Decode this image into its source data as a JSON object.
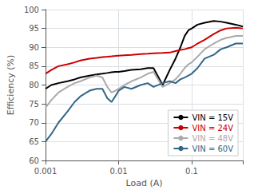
{
  "chart_data": {
    "type": "line",
    "xlabel": "Load (A)",
    "ylabel": "Efficiency (%)",
    "log": "x",
    "xlim": [
      0.001,
      0.5
    ],
    "ylim": [
      60,
      100
    ],
    "xticks": [
      0.001,
      0.01,
      0.1
    ],
    "yticks": [
      60,
      65,
      70,
      75,
      80,
      85,
      90,
      95,
      100
    ],
    "grid": true,
    "legend": "lower right",
    "x": [
      0.001,
      0.0012,
      0.0015,
      0.002,
      0.0025,
      0.003,
      0.004,
      0.005,
      0.006,
      0.007,
      0.008,
      0.009,
      0.01,
      0.012,
      0.015,
      0.02,
      0.025,
      0.03,
      0.04,
      0.05,
      0.06,
      0.07,
      0.08,
      0.09,
      0.1,
      0.12,
      0.15,
      0.2,
      0.25,
      0.3,
      0.4,
      0.5
    ],
    "series": [
      {
        "name": "VIN = 15V",
        "color": "#000000",
        "values": [
          79.0,
          80.0,
          80.5,
          81.0,
          81.5,
          82.0,
          82.5,
          82.8,
          83.0,
          83.2,
          83.4,
          83.5,
          83.5,
          83.7,
          84.0,
          84.2,
          84.5,
          84.5,
          80.0,
          84.0,
          87.0,
          90.0,
          93.0,
          94.5,
          95.0,
          96.0,
          96.5,
          97.0,
          96.8,
          96.5,
          96.0,
          95.5
        ]
      },
      {
        "name": "VIN = 24V",
        "color": "#cc0000",
        "values": [
          83.0,
          84.0,
          85.0,
          85.5,
          86.0,
          86.5,
          87.0,
          87.2,
          87.4,
          87.5,
          87.6,
          87.7,
          87.8,
          87.9,
          88.0,
          88.2,
          88.3,
          88.4,
          88.5,
          88.6,
          89.0,
          89.3,
          89.5,
          89.8,
          90.0,
          91.0,
          92.0,
          93.5,
          94.5,
          95.0,
          95.2,
          95.0
        ]
      },
      {
        "name": "VIN = 48V",
        "color": "#aaaaaa",
        "values": [
          74.0,
          76.0,
          78.0,
          79.5,
          80.5,
          81.0,
          82.0,
          82.5,
          82.0,
          79.5,
          78.0,
          78.5,
          79.0,
          80.0,
          81.0,
          82.0,
          83.0,
          83.5,
          79.5,
          80.5,
          81.5,
          83.0,
          84.5,
          85.5,
          86.0,
          87.5,
          89.5,
          91.0,
          92.0,
          92.5,
          93.0,
          93.0
        ]
      },
      {
        "name": "VIN = 60V",
        "color": "#336688",
        "values": [
          65.0,
          67.0,
          70.0,
          73.0,
          75.5,
          77.0,
          78.5,
          79.0,
          79.0,
          76.5,
          75.5,
          77.0,
          78.5,
          79.5,
          79.0,
          80.0,
          80.5,
          79.5,
          80.5,
          81.0,
          80.5,
          81.5,
          82.0,
          82.5,
          83.0,
          84.5,
          87.0,
          88.0,
          89.5,
          90.0,
          91.0,
          91.0
        ]
      }
    ]
  }
}
